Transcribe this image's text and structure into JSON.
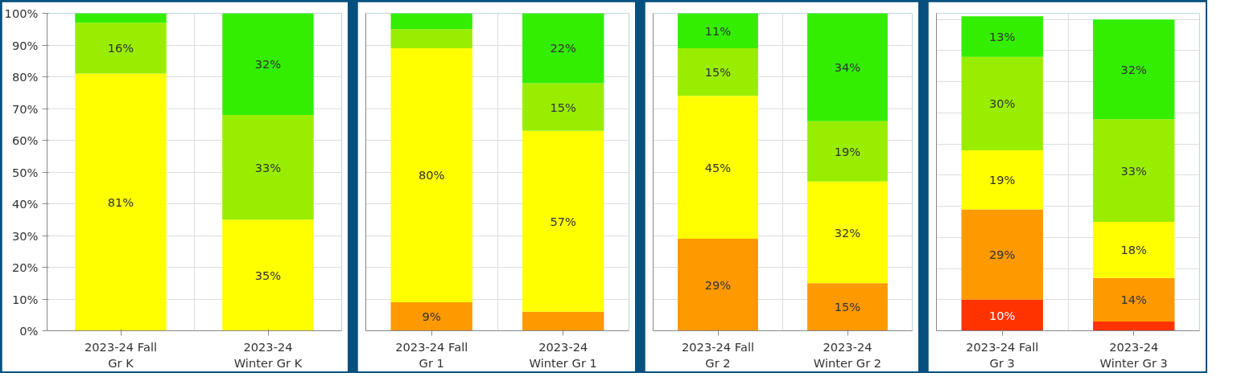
{
  "chart_data": [
    {
      "type": "bar",
      "stacked": true,
      "categories": [
        "2023-24 Fall\nGr K",
        "2023-24\nWinter Gr K"
      ],
      "ylim": [
        0,
        100
      ],
      "yticks": [
        {
          "value": 0,
          "label": "0%"
        },
        {
          "value": 10,
          "label": "10%"
        },
        {
          "value": 20,
          "label": "20%"
        },
        {
          "value": 30,
          "label": "30%"
        },
        {
          "value": 40,
          "label": "40%"
        },
        {
          "value": 50,
          "label": "50%"
        },
        {
          "value": 60,
          "label": "60%"
        },
        {
          "value": 70,
          "label": "70%"
        },
        {
          "value": 80,
          "label": "80%"
        },
        {
          "value": 90,
          "label": "90%"
        },
        {
          "value": 100,
          "label": "100%"
        }
      ],
      "grid": true,
      "series": [
        {
          "color": "#ffff00",
          "values": [
            81,
            35
          ],
          "value_labels": [
            "81%",
            "35%"
          ]
        },
        {
          "color": "#99ee00",
          "values": [
            16,
            33
          ],
          "value_labels": [
            "16%",
            "33%"
          ]
        },
        {
          "color": "#33ee00",
          "values": [
            3,
            32
          ],
          "value_labels": [
            null,
            "32%"
          ]
        }
      ]
    },
    {
      "type": "bar",
      "stacked": true,
      "categories": [
        "2023-24 Fall\nGr 1",
        "2023-24\nWinter Gr 1"
      ],
      "ylim": [
        0,
        100
      ],
      "yticks": [
        0,
        10,
        20,
        30,
        40,
        50,
        60,
        70,
        80,
        90,
        100
      ],
      "grid": true,
      "tick_labels": "x",
      "series": [
        {
          "color": "#ff9900",
          "values": [
            9,
            6
          ],
          "value_labels": [
            "9%",
            null
          ]
        },
        {
          "color": "#ffff00",
          "values": [
            80,
            57
          ],
          "value_labels": [
            "80%",
            "57%"
          ]
        },
        {
          "color": "#99ee00",
          "values": [
            6,
            15
          ],
          "value_labels": [
            null,
            "15%"
          ]
        },
        {
          "color": "#33ee00",
          "values": [
            5,
            22
          ],
          "value_labels": [
            null,
            "22%"
          ]
        }
      ]
    },
    {
      "type": "bar",
      "stacked": true,
      "categories": [
        "2023-24 Fall\nGr 2",
        "2023-24\nWinter Gr 2"
      ],
      "ylim": [
        0,
        100
      ],
      "yticks": [
        0,
        10,
        20,
        30,
        40,
        50,
        60,
        70,
        80,
        90,
        100
      ],
      "grid": true,
      "tick_labels": "x",
      "series": [
        {
          "color": "#ff9900",
          "values": [
            29,
            15
          ],
          "value_labels": [
            "29%",
            "15%"
          ]
        },
        {
          "color": "#ffff00",
          "values": [
            45,
            32
          ],
          "value_labels": [
            "45%",
            "32%"
          ]
        },
        {
          "color": "#99ee00",
          "values": [
            15,
            19
          ],
          "value_labels": [
            "15%",
            "19%"
          ]
        },
        {
          "color": "#33ee00",
          "values": [
            11,
            34
          ],
          "value_labels": [
            "11%",
            "34%"
          ]
        }
      ]
    },
    {
      "type": "bar",
      "stacked": true,
      "categories": [
        "2023-24 Fall\nGr 3",
        "2023-24\nWinter Gr 3"
      ],
      "ylim": [
        0,
        102
      ],
      "yticks": [
        0,
        10,
        20,
        30,
        40,
        50,
        60,
        70,
        80,
        90,
        100
      ],
      "grid": true,
      "tick_labels": "x",
      "series": [
        {
          "color": "#ff3300",
          "values": [
            10,
            3
          ],
          "value_labels": [
            "10%",
            null
          ]
        },
        {
          "color": "#ff9900",
          "values": [
            29,
            14
          ],
          "value_labels": [
            "29%",
            "14%"
          ]
        },
        {
          "color": "#ffff00",
          "values": [
            19,
            18
          ],
          "value_labels": [
            "19%",
            "18%"
          ]
        },
        {
          "color": "#99ee00",
          "values": [
            30,
            33
          ],
          "value_labels": [
            "30%",
            "33%"
          ]
        },
        {
          "color": "#33ee00",
          "values": [
            13,
            32
          ],
          "value_labels": [
            "13%",
            "32%"
          ]
        }
      ]
    }
  ]
}
